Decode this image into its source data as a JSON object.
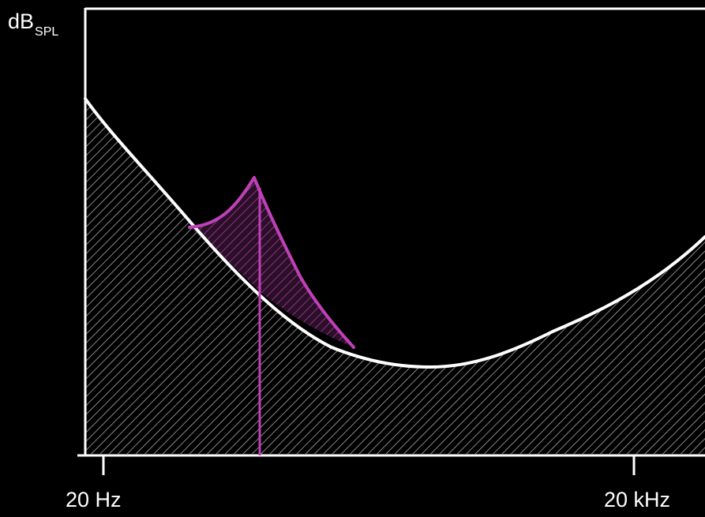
{
  "diagram": {
    "y_axis": {
      "label_main": "dB",
      "label_subscript": "SPL"
    },
    "x_axis": {
      "tick_labels": [
        "20 Hz",
        "20 kHz"
      ]
    },
    "colors": {
      "background": "#000000",
      "threshold_curve": "#ffffff",
      "masking_curve": "#c040b8",
      "hatch": "#ffffff"
    },
    "elements": [
      "absolute threshold of hearing curve (white)",
      "masking threshold (magenta, hatched)",
      "masker tone (magenta vertical line)"
    ]
  }
}
